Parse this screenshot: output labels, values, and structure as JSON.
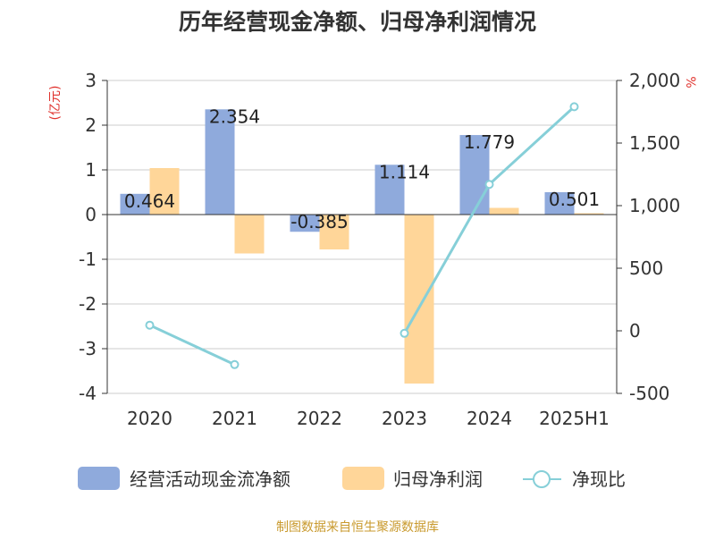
{
  "chart_data": {
    "type": "bar",
    "title": "历年经营现金净额、归母净利润情况",
    "categories": [
      "2020",
      "2021",
      "2022",
      "2023",
      "2024",
      "2025H1"
    ],
    "y_left": {
      "unit_label": "(亿元)",
      "range": [
        -4,
        3
      ],
      "ticks": [
        "3",
        "2",
        "1",
        "0",
        "-1",
        "-2",
        "-3",
        "-4"
      ],
      "tick_values": [
        3,
        2,
        1,
        0,
        -1,
        -2,
        -3,
        -4
      ]
    },
    "y_right": {
      "unit_label": "%",
      "range": [
        -500,
        2000
      ],
      "ticks": [
        "2,000",
        "1,500",
        "1,000",
        "500",
        "0",
        "-500"
      ],
      "tick_values": [
        2000,
        1500,
        1000,
        500,
        0,
        -500
      ]
    },
    "series": [
      {
        "name": "经营活动现金流净额",
        "type": "bar",
        "axis": "left",
        "color": "#8faadc",
        "values": [
          0.464,
          2.354,
          -0.385,
          1.114,
          1.779,
          0.501
        ],
        "labels": [
          "0.464",
          "2.354",
          "-0.385",
          "1.114",
          "1.779",
          "0.501"
        ]
      },
      {
        "name": "归母净利润",
        "type": "bar",
        "axis": "left",
        "color": "#ffd699",
        "values": [
          1.04,
          -0.87,
          -0.78,
          -3.78,
          0.15,
          0.03
        ]
      },
      {
        "name": "净现比",
        "type": "line",
        "axis": "right",
        "color": "#86cfd8",
        "values": [
          45,
          -270,
          null,
          -20,
          1170,
          1790
        ]
      }
    ],
    "grid": true,
    "legend_position": "bottom",
    "source": "制图数据来自恒生聚源数据库"
  }
}
